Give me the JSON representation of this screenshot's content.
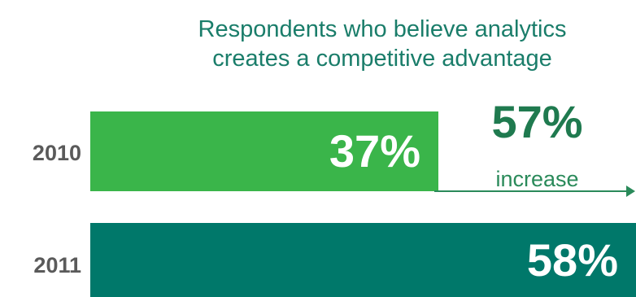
{
  "title": {
    "line1": "Respondents who believe analytics",
    "line2": "creates a competitive advantage"
  },
  "colors": {
    "title": "#1a7d6a",
    "bar_2010": "#3ab54a",
    "bar_2011": "#00786a",
    "year_label": "#5a5a5a",
    "increase": "#1f7a4f"
  },
  "chart_data": {
    "type": "bar",
    "orientation": "horizontal",
    "title": "Respondents who believe analytics creates a competitive advantage",
    "categories": [
      "2010",
      "2011"
    ],
    "values": [
      37,
      58
    ],
    "value_labels": [
      "37%",
      "58%"
    ],
    "unit": "%",
    "xlim": [
      0,
      58
    ],
    "annotation": {
      "value": "57%",
      "text": "increase"
    }
  }
}
